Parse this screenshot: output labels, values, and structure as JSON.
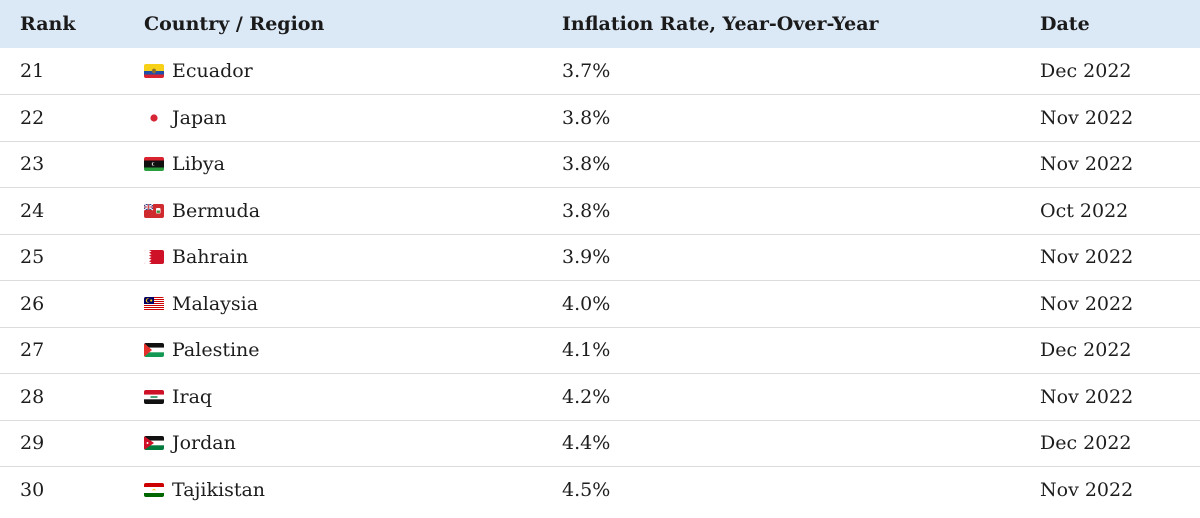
{
  "chart_data": {
    "type": "table",
    "columns": [
      "Rank",
      "Country / Region",
      "Inflation Rate, Year-Over-Year",
      "Date"
    ],
    "rows": [
      {
        "rank": "21",
        "country": "Ecuador",
        "flag": "ecuador-flag-icon",
        "rate": "3.7%",
        "date": "Dec 2022"
      },
      {
        "rank": "22",
        "country": "Japan",
        "flag": "japan-flag-icon",
        "rate": "3.8%",
        "date": "Nov 2022"
      },
      {
        "rank": "23",
        "country": "Libya",
        "flag": "libya-flag-icon",
        "rate": "3.8%",
        "date": "Nov 2022"
      },
      {
        "rank": "24",
        "country": "Bermuda",
        "flag": "bermuda-flag-icon",
        "rate": "3.8%",
        "date": "Oct 2022"
      },
      {
        "rank": "25",
        "country": "Bahrain",
        "flag": "bahrain-flag-icon",
        "rate": "3.9%",
        "date": "Nov 2022"
      },
      {
        "rank": "26",
        "country": "Malaysia",
        "flag": "malaysia-flag-icon",
        "rate": "4.0%",
        "date": "Nov 2022"
      },
      {
        "rank": "27",
        "country": "Palestine",
        "flag": "palestine-flag-icon",
        "rate": "4.1%",
        "date": "Dec 2022"
      },
      {
        "rank": "28",
        "country": "Iraq",
        "flag": "iraq-flag-icon",
        "rate": "4.2%",
        "date": "Nov 2022"
      },
      {
        "rank": "29",
        "country": "Jordan",
        "flag": "jordan-flag-icon",
        "rate": "4.4%",
        "date": "Dec 2022"
      },
      {
        "rank": "30",
        "country": "Tajikistan",
        "flag": "tajikistan-flag-icon",
        "rate": "4.5%",
        "date": "Nov 2022"
      }
    ]
  },
  "colors": {
    "header_background": "#dbe8f6",
    "row_divider": "#dcdcdc"
  }
}
